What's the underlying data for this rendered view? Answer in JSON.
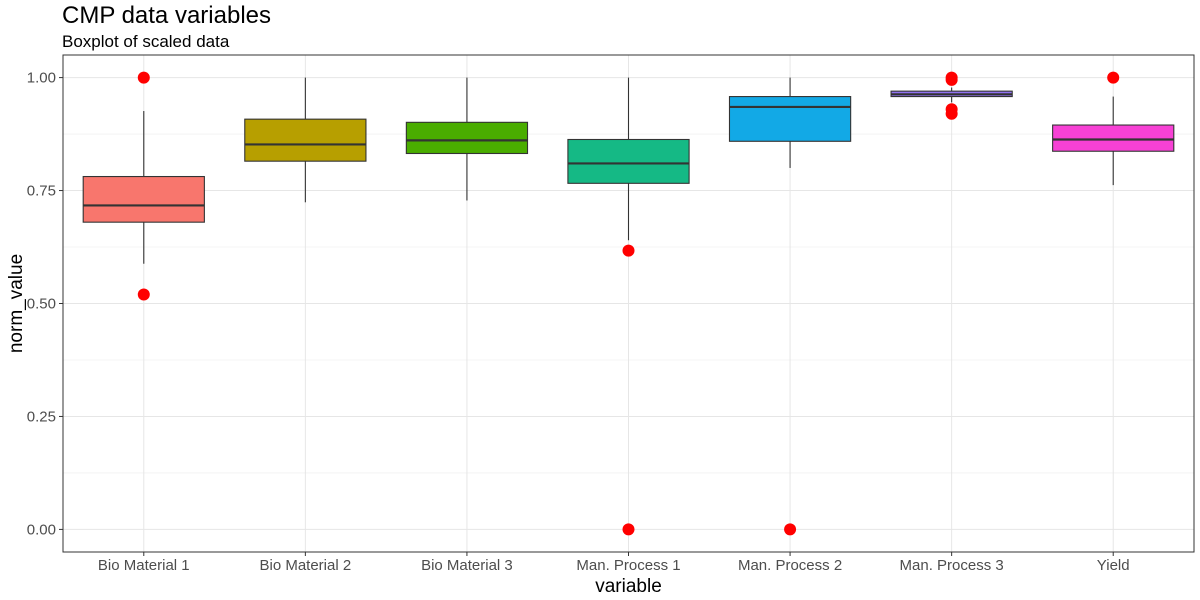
{
  "chart_data": {
    "type": "box",
    "title": "CMP data variables",
    "subtitle": "Boxplot of scaled data",
    "xlabel": "variable",
    "ylabel": "norm_value",
    "ylim": [
      -0.05,
      1.05
    ],
    "yticks": [
      "0.00",
      "0.25",
      "0.50",
      "0.75",
      "1.00"
    ],
    "grid": true,
    "legend": "none",
    "outlier_color": "#ff0000",
    "categories": [
      "Bio Material 1",
      "Bio Material 2",
      "Bio Material 3",
      "Man. Process 1",
      "Man. Process 2",
      "Man. Process 3",
      "Yield"
    ],
    "series": [
      {
        "category": "Bio Material 1",
        "color": "#f8766d",
        "whisker_low": 0.588,
        "q1": 0.68,
        "median": 0.717,
        "q3": 0.781,
        "whisker_high": 0.926,
        "outliers": [
          0.52,
          1.0
        ]
      },
      {
        "category": "Bio Material 2",
        "color": "#b79f00",
        "whisker_low": 0.724,
        "q1": 0.815,
        "median": 0.852,
        "q3": 0.908,
        "whisker_high": 1.0,
        "outliers": []
      },
      {
        "category": "Bio Material 3",
        "color": "#4aad00",
        "whisker_low": 0.728,
        "q1": 0.832,
        "median": 0.861,
        "q3": 0.901,
        "whisker_high": 1.0,
        "outliers": []
      },
      {
        "category": "Man. Process 1",
        "color": "#15b985",
        "whisker_low": 0.64,
        "q1": 0.766,
        "median": 0.81,
        "q3": 0.863,
        "whisker_high": 1.0,
        "outliers": [
          0.617,
          0.0
        ]
      },
      {
        "category": "Man. Process 2",
        "color": "#12a9e6",
        "whisker_low": 0.8,
        "q1": 0.859,
        "median": 0.935,
        "q3": 0.958,
        "whisker_high": 1.0,
        "outliers": [
          0.0
        ]
      },
      {
        "category": "Man. Process 3",
        "color": "#9172f0",
        "whisker_low": 0.945,
        "q1": 0.958,
        "median": 0.963,
        "q3": 0.97,
        "whisker_high": 0.978,
        "outliers": [
          0.92,
          0.93,
          0.995,
          1.0
        ]
      },
      {
        "category": "Yield",
        "color": "#f741d5",
        "whisker_low": 0.762,
        "q1": 0.837,
        "median": 0.863,
        "q3": 0.895,
        "whisker_high": 0.958,
        "outliers": [
          1.0
        ]
      }
    ]
  }
}
